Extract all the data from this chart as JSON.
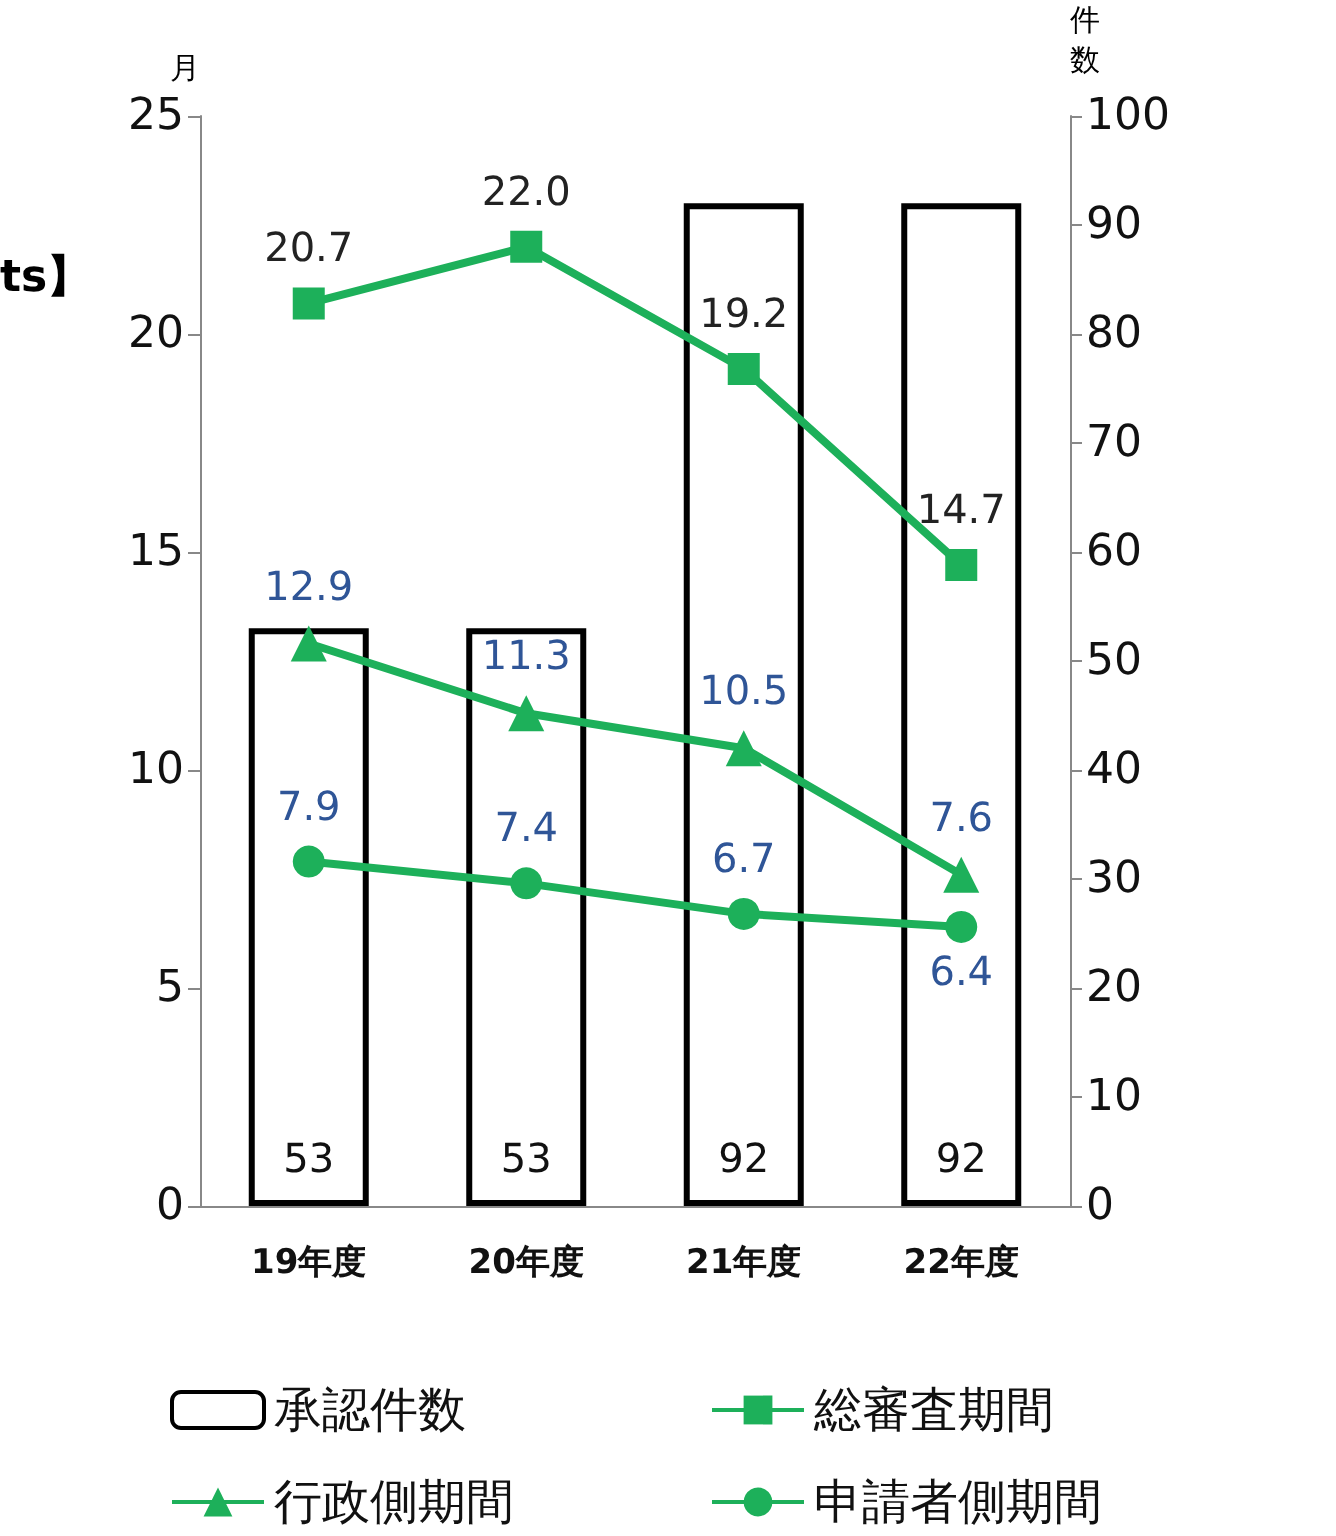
{
  "chart_data": {
    "type": "bar",
    "ylabel": "月",
    "y2label": "件数",
    "annotations": [
      "ts】"
    ],
    "categories": [
      "19年度",
      "20年度",
      "21年度",
      "22年度"
    ],
    "series": [
      {
        "name": "承認件数",
        "axis": "y2",
        "color": "#ffffff",
        "values": [
          53,
          53,
          92,
          92
        ],
        "value_labels": [
          "53",
          "53",
          "92",
          "92"
        ]
      },
      {
        "name": "総審査期間",
        "type": "line",
        "marker": "square",
        "color": "#1db05a",
        "values": [
          20.7,
          22.0,
          19.2,
          14.7
        ],
        "value_labels": [
          "20.7",
          "22.0",
          "19.2",
          "14.7"
        ]
      },
      {
        "name": "行政側期間",
        "type": "line",
        "marker": "triangle",
        "color": "#1db05a",
        "values": [
          12.9,
          11.3,
          10.5,
          7.6
        ],
        "value_labels": [
          "12.9",
          "11.3",
          "10.5",
          "7.6"
        ]
      },
      {
        "name": "申請者側期間",
        "type": "line",
        "marker": "circle",
        "color": "#1db05a",
        "values": [
          7.9,
          7.4,
          6.7,
          6.4
        ],
        "value_labels": [
          "7.9",
          "7.4",
          "6.7",
          "6.4"
        ]
      }
    ],
    "ylim": [
      0,
      25
    ],
    "yticks": [
      0,
      5,
      10,
      15,
      20,
      25
    ],
    "y2lim": [
      0,
      100
    ],
    "y2ticks": [
      0,
      10,
      20,
      30,
      40,
      50,
      60,
      70,
      80,
      90,
      100
    ],
    "grid": false,
    "legend": "bottom"
  }
}
